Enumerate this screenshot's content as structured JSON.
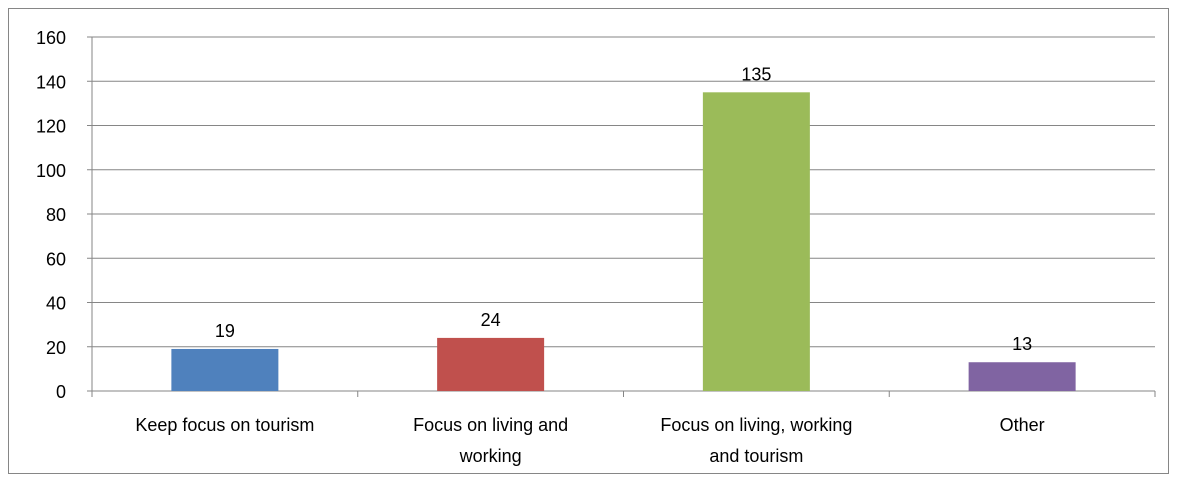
{
  "chart_data": {
    "type": "bar",
    "categories": [
      [
        "Keep focus on tourism"
      ],
      [
        "Focus on living and",
        "working"
      ],
      [
        "Focus on living, working",
        "and tourism"
      ],
      [
        "Other"
      ]
    ],
    "values": [
      19,
      24,
      135,
      13
    ],
    "data_labels": [
      "19",
      "24",
      "135",
      "13"
    ],
    "colors": [
      "#4f81bd",
      "#c0504d",
      "#9bbb59",
      "#8064a2"
    ],
    "ylim": [
      0,
      160
    ],
    "yticks": [
      "0",
      "20",
      "40",
      "60",
      "80",
      "100",
      "120",
      "140",
      "160"
    ],
    "title": "",
    "xlabel": "",
    "ylabel": "",
    "grid": true,
    "legend": "none"
  }
}
